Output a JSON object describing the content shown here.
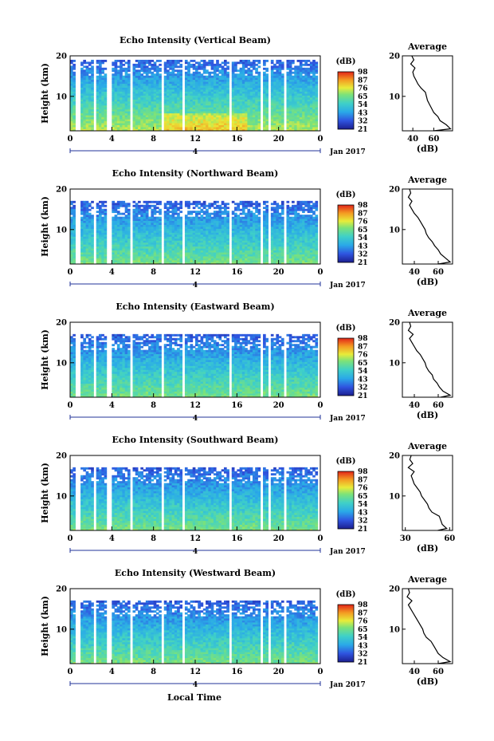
{
  "figure": {
    "date_label": "Jan 2017",
    "date_tick": "4",
    "xlabel": "Local Time",
    "colorbar_unit": "(dB)",
    "colorbar_levels": [
      "21",
      "32",
      "43",
      "54",
      "65",
      "76",
      "87",
      "98"
    ],
    "avg_title": "Average",
    "avg_xlabel": "(dB)"
  },
  "chart_data": [
    {
      "type": "heatmap",
      "title": "Echo Intensity (Vertical Beam)",
      "ylabel": "Height (km)",
      "xticks": [
        "0",
        "4",
        "8",
        "12",
        "16",
        "20",
        "0"
      ],
      "yticks": [
        "10",
        "20"
      ],
      "xlim": [
        0,
        24
      ],
      "ylim": [
        1.5,
        20
      ],
      "colorbar": {
        "min": 21,
        "max": 98
      },
      "gaps_hours": [
        [
          0.5,
          1.1
        ],
        [
          2.2,
          2.6
        ],
        [
          3.5,
          3.9
        ],
        [
          5.7,
          6.0
        ],
        [
          8.8,
          9.1
        ],
        [
          10.8,
          11.1
        ],
        [
          15.2,
          15.5
        ],
        [
          18.2,
          18.5
        ],
        [
          19.0,
          19.2
        ],
        [
          20.5,
          20.8
        ],
        [
          23.8,
          24
        ]
      ],
      "average_profile": {
        "title": "Average",
        "xlabel": "(dB)",
        "xticks": [
          40,
          60
        ],
        "xlim": [
          30,
          78
        ],
        "yticks": [
          10,
          20
        ],
        "ylim": [
          1.5,
          20
        ],
        "height_km": [
          1.5,
          2,
          3,
          4,
          5,
          6,
          7,
          8,
          9,
          10,
          11,
          12,
          13,
          14,
          15,
          16,
          17,
          18,
          19,
          20
        ],
        "db": [
          60,
          76,
          72,
          66,
          64,
          60,
          58,
          56,
          54,
          53,
          52,
          48,
          45,
          43,
          41,
          40,
          42,
          38,
          41,
          39
        ]
      }
    },
    {
      "type": "heatmap",
      "title": "Echo Intensity (Northward Beam)",
      "ylabel": "Height (km)",
      "xticks": [
        "0",
        "4",
        "8",
        "12",
        "16",
        "20",
        "0"
      ],
      "yticks": [
        "10",
        "20"
      ],
      "xlim": [
        0,
        24
      ],
      "ylim": [
        1.5,
        20
      ],
      "colorbar": {
        "min": 21,
        "max": 98
      },
      "gaps_hours": [
        [
          0.5,
          1.1
        ],
        [
          2.2,
          2.6
        ],
        [
          3.5,
          3.9
        ],
        [
          5.7,
          6.0
        ],
        [
          8.8,
          9.1
        ],
        [
          10.8,
          11.1
        ],
        [
          15.2,
          15.5
        ],
        [
          18.2,
          18.5
        ],
        [
          19.0,
          19.2
        ],
        [
          20.5,
          20.8
        ],
        [
          23.8,
          24
        ]
      ],
      "average_profile": {
        "title": "Average",
        "xlabel": "(dB)",
        "xticks": [
          40,
          60
        ],
        "xlim": [
          30,
          72
        ],
        "yticks": [
          10,
          20
        ],
        "ylim": [
          1.5,
          20
        ],
        "height_km": [
          1.5,
          2,
          3,
          4,
          5,
          6,
          7,
          8,
          9,
          10,
          11,
          12,
          13,
          14,
          15,
          16,
          17,
          18,
          19,
          20
        ],
        "db": [
          60,
          70,
          66,
          62,
          60,
          57,
          55,
          52,
          50,
          49,
          47,
          45,
          43,
          40,
          38,
          36,
          38,
          35,
          37,
          36
        ]
      }
    },
    {
      "type": "heatmap",
      "title": "Echo Intensity (Eastward Beam)",
      "ylabel": "Height (km)",
      "xticks": [
        "0",
        "4",
        "8",
        "12",
        "16",
        "20",
        "0"
      ],
      "yticks": [
        "10",
        "20"
      ],
      "xlim": [
        0,
        24
      ],
      "ylim": [
        1.5,
        20
      ],
      "colorbar": {
        "min": 21,
        "max": 98
      },
      "gaps_hours": [
        [
          0.5,
          1.1
        ],
        [
          2.2,
          2.6
        ],
        [
          3.5,
          3.9
        ],
        [
          5.7,
          6.0
        ],
        [
          8.8,
          9.1
        ],
        [
          10.8,
          11.1
        ],
        [
          15.2,
          15.5
        ],
        [
          18.2,
          18.5
        ],
        [
          19.0,
          19.2
        ],
        [
          20.5,
          20.8
        ],
        [
          23.8,
          24
        ]
      ],
      "average_profile": {
        "title": "Average",
        "xlabel": "(dB)",
        "xticks": [
          40,
          60
        ],
        "xlim": [
          30,
          72
        ],
        "yticks": [
          10,
          20
        ],
        "ylim": [
          1.5,
          20
        ],
        "height_km": [
          1.5,
          2,
          3,
          4,
          5,
          6,
          7,
          8,
          9,
          10,
          11,
          12,
          13,
          14,
          15,
          16,
          17,
          18,
          19,
          20
        ],
        "db": [
          62,
          70,
          64,
          61,
          59,
          56,
          55,
          52,
          50,
          49,
          47,
          45,
          42,
          40,
          38,
          36,
          39,
          35,
          37,
          36
        ]
      }
    },
    {
      "type": "heatmap",
      "title": "Echo Intensity (Southward Beam)",
      "ylabel": "Height (km)",
      "xticks": [
        "0",
        "4",
        "8",
        "12",
        "16",
        "20",
        "0"
      ],
      "yticks": [
        "10",
        "20"
      ],
      "xlim": [
        0,
        24
      ],
      "ylim": [
        1.5,
        20
      ],
      "colorbar": {
        "min": 21,
        "max": 98
      },
      "gaps_hours": [
        [
          0.5,
          1.1
        ],
        [
          2.2,
          2.6
        ],
        [
          3.5,
          3.9
        ],
        [
          5.7,
          6.0
        ],
        [
          8.8,
          9.1
        ],
        [
          10.8,
          11.1
        ],
        [
          15.2,
          15.5
        ],
        [
          18.2,
          18.5
        ],
        [
          19.0,
          19.2
        ],
        [
          20.5,
          20.8
        ],
        [
          23.8,
          24
        ]
      ],
      "average_profile": {
        "title": "Average",
        "xlabel": "(dB)",
        "xticks": [
          30,
          60
        ],
        "xlim": [
          28,
          62
        ],
        "yticks": [
          10,
          20
        ],
        "ylim": [
          1.5,
          20
        ],
        "height_km": [
          1.5,
          2,
          3,
          4,
          5,
          6,
          7,
          8,
          9,
          10,
          11,
          12,
          13,
          14,
          15,
          16,
          17,
          18,
          19,
          20
        ],
        "db": [
          52,
          58,
          55,
          54,
          53,
          48,
          46,
          45,
          43,
          41,
          40,
          38,
          36,
          35,
          34,
          36,
          32,
          35,
          33,
          34
        ]
      }
    },
    {
      "type": "heatmap",
      "title": "Echo Intensity (Westward Beam)",
      "ylabel": "Height (km)",
      "xticks": [
        "0",
        "4",
        "8",
        "12",
        "16",
        "20",
        "0"
      ],
      "yticks": [
        "10",
        "20"
      ],
      "xlim": [
        0,
        24
      ],
      "ylim": [
        1.5,
        20
      ],
      "colorbar": {
        "min": 21,
        "max": 98
      },
      "gaps_hours": [
        [
          0.5,
          1.1
        ],
        [
          2.2,
          2.6
        ],
        [
          3.5,
          3.9
        ],
        [
          5.7,
          6.0
        ],
        [
          8.8,
          9.1
        ],
        [
          10.8,
          11.1
        ],
        [
          15.2,
          15.5
        ],
        [
          18.2,
          18.5
        ],
        [
          19.0,
          19.2
        ],
        [
          20.5,
          20.8
        ],
        [
          23.8,
          24
        ]
      ],
      "average_profile": {
        "title": "Average",
        "xlabel": "(dB)",
        "xticks": [
          40,
          60
        ],
        "xlim": [
          30,
          72
        ],
        "yticks": [
          10,
          20
        ],
        "ylim": [
          1.5,
          20
        ],
        "height_km": [
          1.5,
          2,
          3,
          4,
          5,
          6,
          7,
          8,
          9,
          10,
          11,
          12,
          13,
          14,
          15,
          16,
          17,
          18,
          19,
          20
        ],
        "db": [
          60,
          70,
          64,
          60,
          58,
          56,
          54,
          50,
          48,
          47,
          45,
          43,
          41,
          39,
          37,
          35,
          38,
          34,
          36,
          35
        ]
      }
    }
  ]
}
